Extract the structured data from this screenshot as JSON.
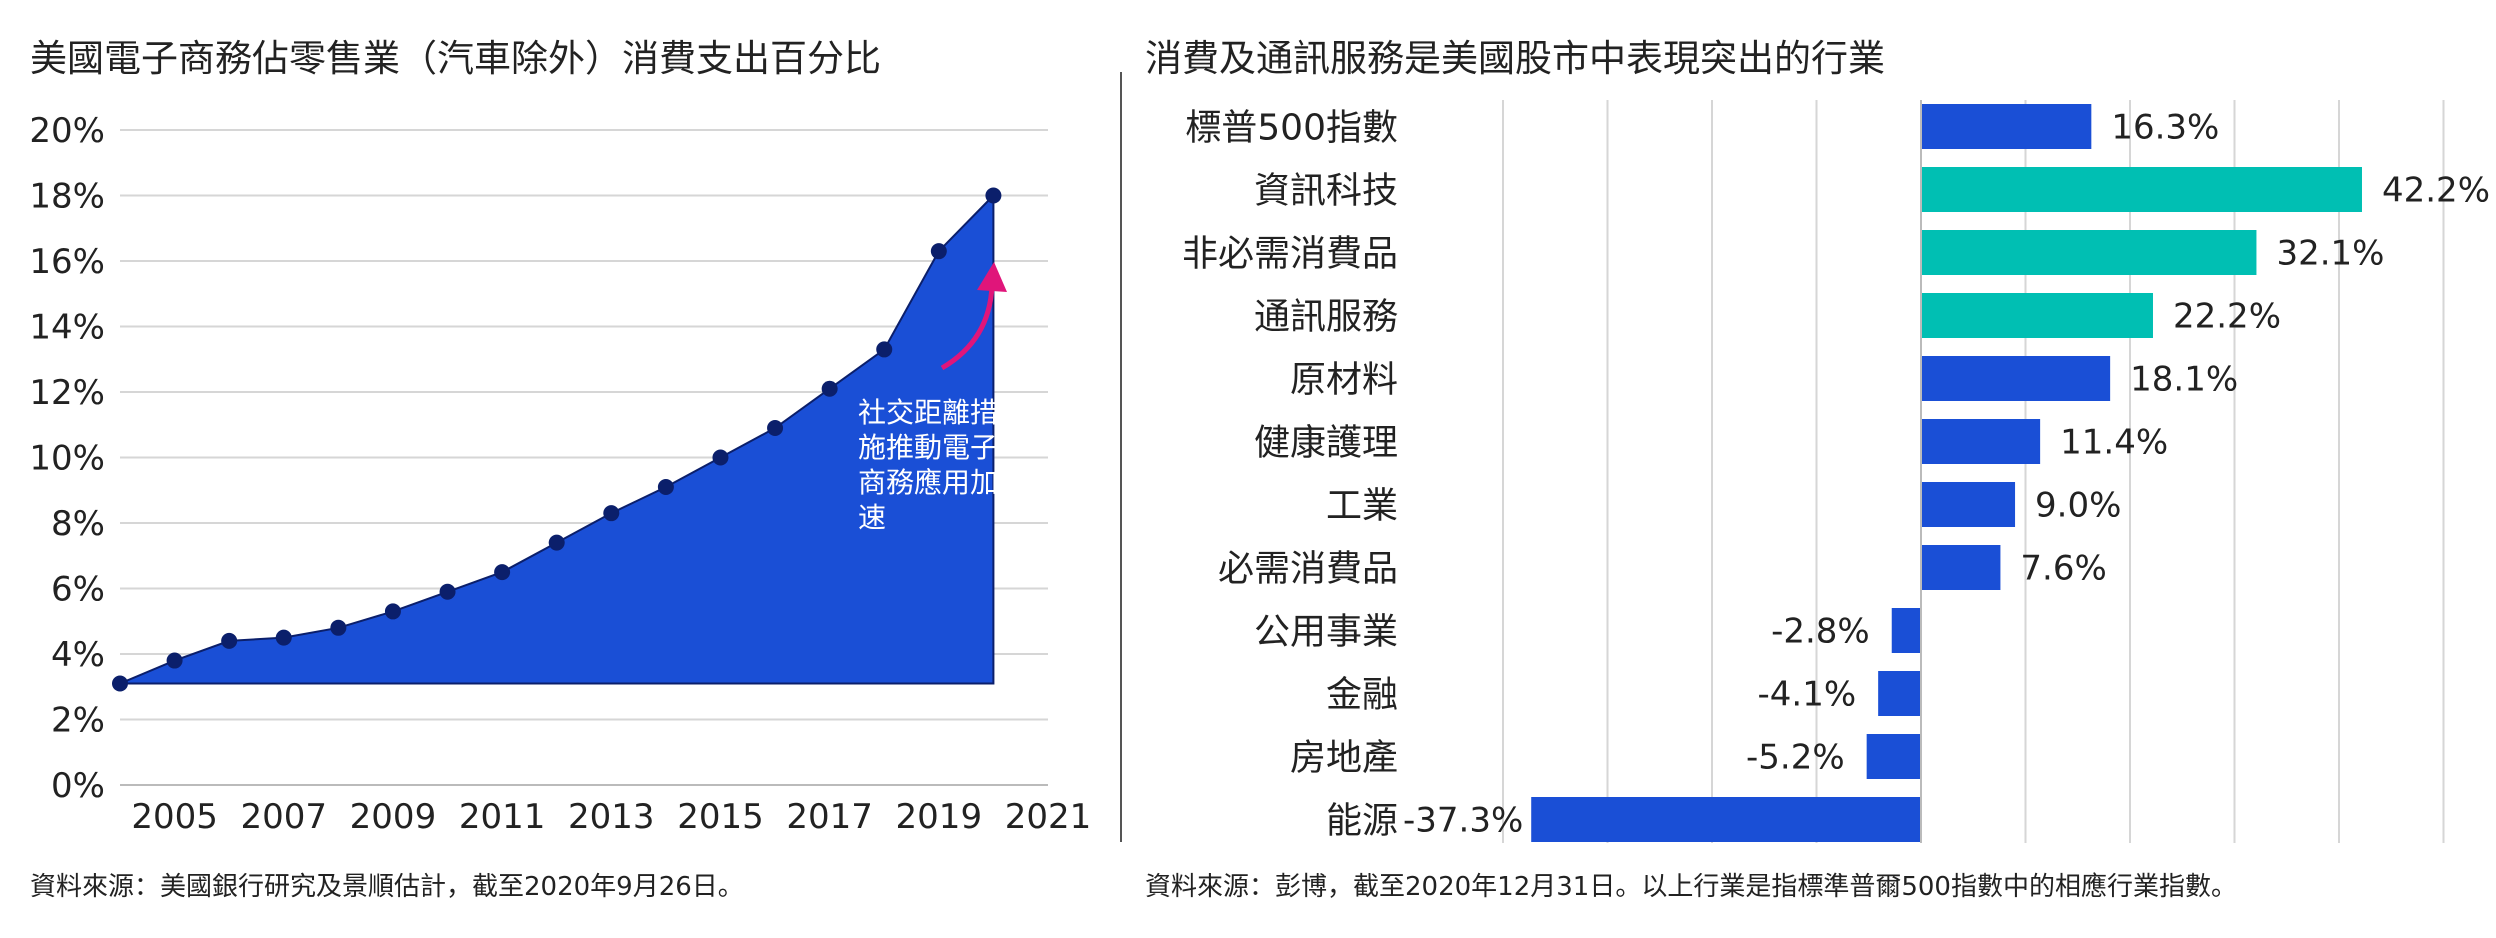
{
  "charts": {
    "left": {
      "title": "美國電子商務佔零售業（汽車除外）消費支出百分比",
      "source": "資料來源：美國銀行研究及景順估計，截至2020年9月26日。",
      "annotation": "社交距離措施推動電子商務應用加速",
      "annotation_lines": [
        "社交距離措",
        "施推動電子",
        "商務應用加",
        "速"
      ]
    },
    "right": {
      "title": "消費及通訊服務是美國股市中表現突出的行業",
      "source": "資料來源：彭博，截至2020年12月31日。以上行業是指標準普爾500指數中的相應行業指數。"
    }
  },
  "colors": {
    "area_fill": "#1a4fd6",
    "marker": "#0b1f6b",
    "bar_blue": "#1a4fd6",
    "bar_teal": "#00bfb3",
    "arrow": "#e0157a",
    "grid": "#d6d6d6"
  },
  "chart_data": [
    {
      "type": "area",
      "title": "美國電子商務佔零售業（汽車除外）消費支出百分比",
      "x": [
        2004,
        2005,
        2006,
        2007,
        2008,
        2009,
        2010,
        2011,
        2012,
        2013,
        2014,
        2015,
        2016,
        2017,
        2018,
        2019,
        2020
      ],
      "series": [
        {
          "values": [
            3.1,
            3.8,
            4.4,
            4.5,
            4.8,
            5.3,
            5.9,
            6.5,
            7.4,
            8.3,
            9.1,
            10.0,
            10.9,
            12.1,
            13.3,
            16.3,
            18.0
          ]
        }
      ],
      "x_tick_labels": [
        "2005",
        "2007",
        "2009",
        "2011",
        "2013",
        "2015",
        "2017",
        "2019",
        "2021"
      ],
      "y_tick_labels": [
        "0%",
        "2%",
        "4%",
        "6%",
        "8%",
        "10%",
        "12%",
        "14%",
        "16%",
        "18%",
        "20%"
      ],
      "ylim": [
        0,
        20
      ],
      "grid": "horizontal"
    },
    {
      "type": "bar",
      "orientation": "horizontal",
      "title": "消費及通訊服務是美國股市中表現突出的行業",
      "categories": [
        "標普500指數",
        "資訊科技",
        "非必需消費品",
        "通訊服務",
        "原材料",
        "健康護理",
        "工業",
        "必需消費品",
        "公用事業",
        "金融",
        "房地產",
        "能源"
      ],
      "values": [
        16.3,
        42.2,
        32.1,
        22.2,
        18.1,
        11.4,
        9.0,
        7.6,
        -2.8,
        -4.1,
        -5.2,
        -37.3
      ],
      "data_labels": [
        "16.3%",
        "42.2%",
        "32.1%",
        "22.2%",
        "18.1%",
        "11.4%",
        "9.0%",
        "7.6%",
        "-2.8%",
        "-4.1%",
        "-5.2%",
        "-37.3%"
      ],
      "highlight": [
        false,
        true,
        true,
        true,
        false,
        false,
        false,
        false,
        false,
        false,
        false,
        false
      ],
      "xlim": [
        -50,
        50
      ],
      "grid": "vertical"
    }
  ]
}
